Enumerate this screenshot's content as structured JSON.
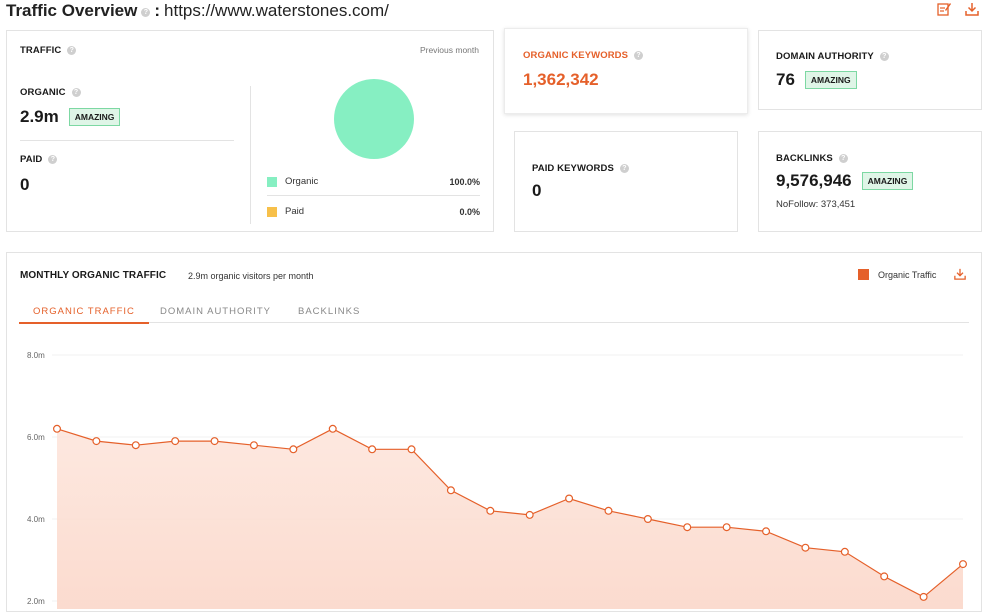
{
  "header": {
    "title": "Traffic Overview",
    "colon": ":",
    "url": "https://www.waterstones.com/"
  },
  "traffic_card": {
    "label": "TRAFFIC",
    "period": "Previous month",
    "organic": {
      "label": "ORGANIC",
      "value": "2.9m",
      "badge": "AMAZING"
    },
    "paid": {
      "label": "PAID",
      "value": "0"
    },
    "legend": [
      {
        "name": "Organic",
        "percent": "100.0%",
        "color": "#86efc2"
      },
      {
        "name": "Paid",
        "percent": "0.0%",
        "color": "#f7c04a"
      }
    ]
  },
  "organic_keywords": {
    "label": "ORGANIC KEYWORDS",
    "value": "1,362,342"
  },
  "paid_keywords": {
    "label": "PAID KEYWORDS",
    "value": "0"
  },
  "domain_authority": {
    "label": "DOMAIN AUTHORITY",
    "value": "76",
    "badge": "AMAZING"
  },
  "backlinks": {
    "label": "BACKLINKS",
    "value": "9,576,946",
    "badge": "AMAZING",
    "nofollow": "NoFollow: 373,451"
  },
  "monthly": {
    "title": "MONTHLY ORGANIC TRAFFIC",
    "subtitle": "2.9m organic visitors per month",
    "legend_label": "Organic Traffic",
    "tabs": [
      {
        "label": "ORGANIC TRAFFIC",
        "active": true
      },
      {
        "label": "DOMAIN AUTHORITY",
        "active": false
      },
      {
        "label": "BACKLINKS",
        "active": false
      }
    ]
  },
  "colors": {
    "accent": "#e5602a",
    "badge_bg": "#dff5e7",
    "badge_border": "#7dd8a3",
    "area_fill": "#fbe1d8"
  },
  "icons": [
    "help-icon",
    "edit-note-icon",
    "download-icon"
  ],
  "chart_data": {
    "type": "area",
    "title": "",
    "xlabel": "",
    "ylabel": "",
    "ylim": [
      2.0,
      8.0
    ],
    "y_ticks": [
      "8.0m",
      "6.0m",
      "4.0m",
      "2.0m"
    ],
    "y_tick_values": [
      8.0,
      6.0,
      4.0,
      2.0
    ],
    "legend": [
      "Organic Traffic"
    ],
    "grid": true,
    "series": [
      {
        "name": "Organic Traffic",
        "values": [
          6.2,
          5.9,
          5.8,
          5.9,
          5.9,
          5.8,
          5.7,
          6.2,
          5.7,
          5.7,
          4.7,
          4.2,
          4.1,
          4.5,
          4.2,
          4.0,
          3.8,
          3.8,
          3.7,
          3.3,
          3.2,
          2.6,
          2.1,
          2.9
        ]
      }
    ]
  }
}
